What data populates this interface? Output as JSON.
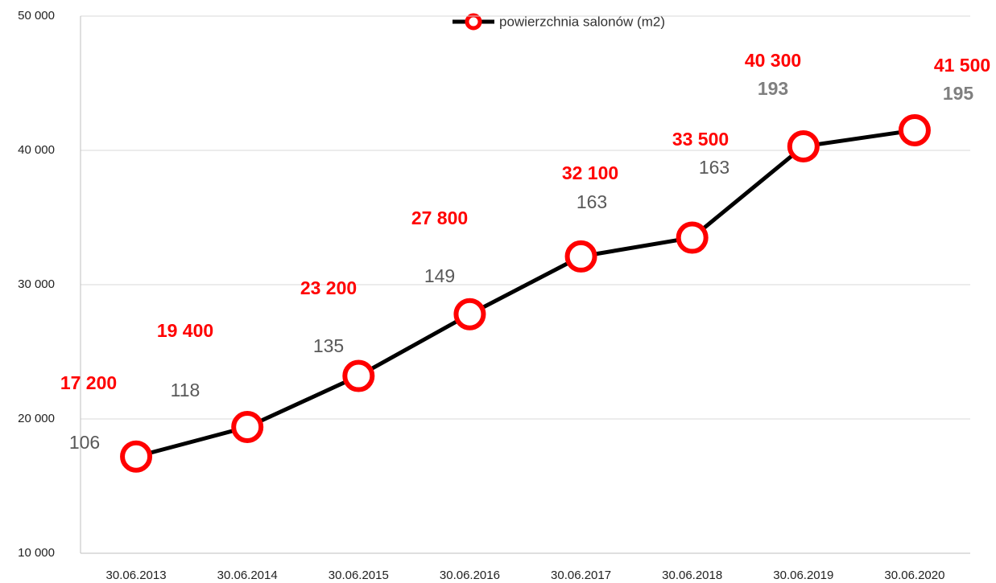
{
  "chart_data": {
    "type": "line",
    "categories": [
      "30.06.2013",
      "30.06.2014",
      "30.06.2015",
      "30.06.2016",
      "30.06.2017",
      "30.06.2018",
      "30.06.2019",
      "30.06.2020"
    ],
    "series": [
      {
        "name": "powierzchnia salonów (m2)",
        "color": "#ff0000",
        "line_color": "#000000",
        "values": [
          17200,
          19400,
          23200,
          27800,
          32100,
          33500,
          40300,
          41500
        ],
        "value_labels": [
          "17 200",
          "19 400",
          "23 200",
          "27 800",
          "32 100",
          "33 500",
          "40 300",
          "41 500"
        ]
      },
      {
        "color": "#595959",
        "values": [
          106,
          118,
          135,
          149,
          163,
          163,
          193,
          195
        ]
      }
    ],
    "ylim": [
      10000,
      50000
    ],
    "yticks": [
      {
        "value": 10000,
        "label": "10 000"
      },
      {
        "value": 20000,
        "label": "20 000"
      },
      {
        "value": 30000,
        "label": "30 000"
      },
      {
        "value": 40000,
        "label": "40 000"
      },
      {
        "value": 50000,
        "label": "50 000"
      }
    ],
    "grid": true,
    "legend": "top"
  }
}
